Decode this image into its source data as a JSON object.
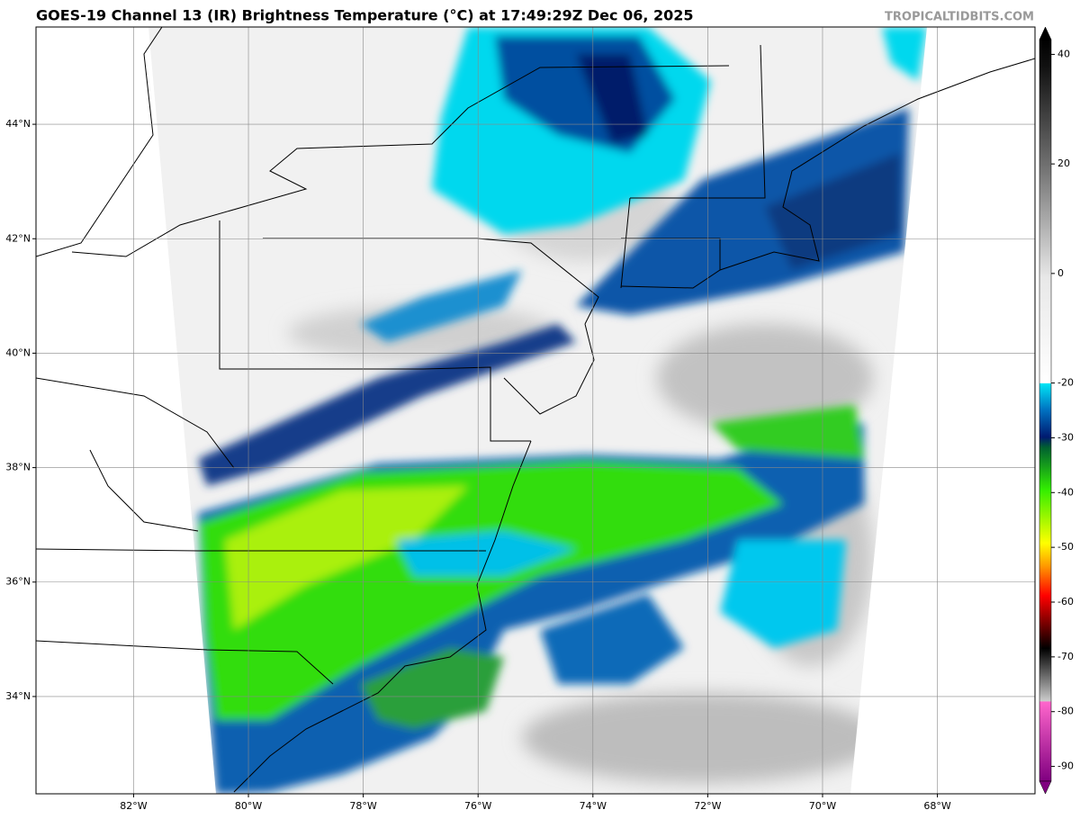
{
  "map": {
    "title": "GOES-19 Channel 13 (IR) Brightness Temperature (°C) at 17:49:29Z Dec 06, 2025",
    "source": "TROPICALTIDBITS.COM",
    "xlim": [
      -83.7,
      -66.3
    ],
    "ylim": [
      32.3,
      45.7
    ],
    "xticks": [
      {
        "value": -82,
        "label": "82°W"
      },
      {
        "value": -80,
        "label": "80°W"
      },
      {
        "value": -78,
        "label": "78°W"
      },
      {
        "value": -76,
        "label": "76°W"
      },
      {
        "value": -74,
        "label": "74°W"
      },
      {
        "value": -72,
        "label": "72°W"
      },
      {
        "value": -70,
        "label": "70°W"
      },
      {
        "value": -68,
        "label": "68°W"
      }
    ],
    "yticks": [
      {
        "value": 34,
        "label": "34°N"
      },
      {
        "value": 36,
        "label": "36°N"
      },
      {
        "value": 38,
        "label": "38°N"
      },
      {
        "value": 40,
        "label": "40°N"
      },
      {
        "value": 42,
        "label": "42°N"
      },
      {
        "value": 44,
        "label": "44°N"
      }
    ],
    "grid": true,
    "colorbar": {
      "lim": [
        -95,
        45
      ],
      "ticks": [
        40,
        20,
        0,
        -20,
        -30,
        -40,
        -50,
        -60,
        -70,
        -80,
        -90
      ]
    }
  }
}
